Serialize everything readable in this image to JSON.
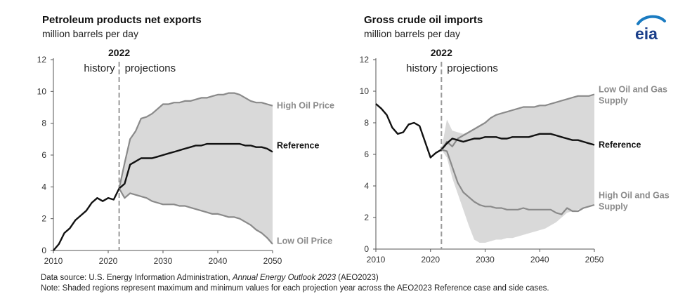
{
  "logo_text": "eia",
  "footer": {
    "source_prefix": "Data source: U.S. Energy Information Administration, ",
    "source_italic": "Annual Energy Outlook 2023",
    "source_suffix": " (AEO2023)",
    "note": "Note: Shaded regions represent maximum and minimum values for each projection year across the AEO2023 Reference case and side cases."
  },
  "colors": {
    "reference": "#111111",
    "side": "#8a8a8a",
    "band": "#d9d9d9",
    "divider": "#999999"
  },
  "chart_data": [
    {
      "type": "area",
      "title": "Petroleum products net exports",
      "subtitle": "million barrels per day",
      "divider_year_label": "2022",
      "history_label": "history",
      "projection_label": "projections",
      "xlim": [
        2010,
        2050
      ],
      "ylim": [
        0,
        12
      ],
      "x_ticks": [
        "2010",
        "2020",
        "2030",
        "2040",
        "2050"
      ],
      "y_ticks": [
        "0",
        "2",
        "4",
        "6",
        "8",
        "10",
        "12"
      ],
      "divider_x": 2022,
      "grid": false,
      "history": {
        "x": [
          2010,
          2011,
          2012,
          2013,
          2014,
          2015,
          2016,
          2017,
          2018,
          2019,
          2020,
          2021,
          2022
        ],
        "values": [
          0.0,
          0.4,
          1.1,
          1.4,
          1.9,
          2.2,
          2.5,
          3.0,
          3.3,
          3.1,
          3.3,
          3.2,
          3.9
        ]
      },
      "series": [
        {
          "name": "High Oil Price",
          "x": [
            2022,
            2023,
            2024,
            2025,
            2026,
            2027,
            2028,
            2029,
            2030,
            2031,
            2032,
            2033,
            2034,
            2035,
            2036,
            2037,
            2038,
            2039,
            2040,
            2041,
            2042,
            2043,
            2044,
            2045,
            2046,
            2047,
            2048,
            2049,
            2050
          ],
          "values": [
            3.9,
            5.5,
            7.0,
            7.5,
            8.3,
            8.4,
            8.6,
            8.9,
            9.2,
            9.2,
            9.3,
            9.3,
            9.4,
            9.4,
            9.5,
            9.6,
            9.6,
            9.7,
            9.8,
            9.8,
            9.9,
            9.9,
            9.8,
            9.6,
            9.4,
            9.3,
            9.3,
            9.2,
            9.1
          ]
        },
        {
          "name": "Reference",
          "x": [
            2022,
            2023,
            2024,
            2025,
            2026,
            2027,
            2028,
            2029,
            2030,
            2031,
            2032,
            2033,
            2034,
            2035,
            2036,
            2037,
            2038,
            2039,
            2040,
            2041,
            2042,
            2043,
            2044,
            2045,
            2046,
            2047,
            2048,
            2049,
            2050
          ],
          "values": [
            3.9,
            4.2,
            5.4,
            5.6,
            5.8,
            5.8,
            5.8,
            5.9,
            6.0,
            6.1,
            6.2,
            6.3,
            6.4,
            6.5,
            6.6,
            6.6,
            6.7,
            6.7,
            6.7,
            6.7,
            6.7,
            6.7,
            6.7,
            6.6,
            6.6,
            6.5,
            6.5,
            6.4,
            6.2
          ]
        },
        {
          "name": "Low Oil Price",
          "x": [
            2022,
            2023,
            2024,
            2025,
            2026,
            2027,
            2028,
            2029,
            2030,
            2031,
            2032,
            2033,
            2034,
            2035,
            2036,
            2037,
            2038,
            2039,
            2040,
            2041,
            2042,
            2043,
            2044,
            2045,
            2046,
            2047,
            2048,
            2049,
            2050
          ],
          "values": [
            3.9,
            3.3,
            3.6,
            3.5,
            3.4,
            3.3,
            3.1,
            3.0,
            2.9,
            2.9,
            2.9,
            2.8,
            2.8,
            2.7,
            2.6,
            2.5,
            2.4,
            2.3,
            2.3,
            2.2,
            2.1,
            2.1,
            2.0,
            1.8,
            1.6,
            1.3,
            1.1,
            0.8,
            0.4
          ]
        }
      ],
      "band": {
        "x": [
          2022,
          2023,
          2024,
          2025,
          2026,
          2027,
          2028,
          2029,
          2030,
          2031,
          2032,
          2033,
          2034,
          2035,
          2036,
          2037,
          2038,
          2039,
          2040,
          2041,
          2042,
          2043,
          2044,
          2045,
          2046,
          2047,
          2048,
          2049,
          2050
        ],
        "upper": [
          3.9,
          5.5,
          7.0,
          7.5,
          8.3,
          8.4,
          8.6,
          8.9,
          9.2,
          9.2,
          9.3,
          9.3,
          9.4,
          9.4,
          9.5,
          9.6,
          9.6,
          9.7,
          9.8,
          9.8,
          9.9,
          9.9,
          9.8,
          9.6,
          9.4,
          9.3,
          9.3,
          9.2,
          9.1
        ],
        "lower": [
          3.9,
          3.3,
          3.6,
          3.5,
          3.4,
          3.3,
          3.1,
          3.0,
          2.9,
          2.9,
          2.9,
          2.8,
          2.8,
          2.7,
          2.6,
          2.5,
          2.4,
          2.3,
          2.3,
          2.2,
          2.1,
          2.1,
          2.0,
          1.8,
          1.6,
          1.3,
          1.1,
          0.8,
          0.4
        ]
      },
      "labels": [
        {
          "text": "High Oil Price",
          "lines": [
            "High Oil Price"
          ],
          "style": "side",
          "y": 9.1
        },
        {
          "text": "Reference",
          "lines": [
            "Reference"
          ],
          "style": "reference",
          "y": 6.6
        },
        {
          "text": "Low Oil Price",
          "lines": [
            "Low Oil Price"
          ],
          "style": "side",
          "y": 0.6
        }
      ]
    },
    {
      "type": "area",
      "title": "Gross crude oil imports",
      "subtitle": "million barrels per day",
      "divider_year_label": "2022",
      "history_label": "history",
      "projection_label": "projections",
      "xlim": [
        2010,
        2050
      ],
      "ylim": [
        0,
        12
      ],
      "x_ticks": [
        "2010",
        "2020",
        "2030",
        "2040",
        "2050"
      ],
      "y_ticks": [
        "0",
        "2",
        "4",
        "6",
        "8",
        "10",
        "12"
      ],
      "divider_x": 2022,
      "grid": false,
      "history": {
        "x": [
          2010,
          2011,
          2012,
          2013,
          2014,
          2015,
          2016,
          2017,
          2018,
          2019,
          2020,
          2021,
          2022
        ],
        "values": [
          9.2,
          8.9,
          8.5,
          7.7,
          7.3,
          7.4,
          7.9,
          8.0,
          7.8,
          6.8,
          5.8,
          6.1,
          6.3
        ]
      },
      "series": [
        {
          "name": "Low Oil and Gas Supply",
          "x": [
            2022,
            2023,
            2024,
            2025,
            2026,
            2027,
            2028,
            2029,
            2030,
            2031,
            2032,
            2033,
            2034,
            2035,
            2036,
            2037,
            2038,
            2039,
            2040,
            2041,
            2042,
            2043,
            2044,
            2045,
            2046,
            2047,
            2048,
            2049,
            2050
          ],
          "values": [
            6.3,
            6.8,
            6.5,
            7.0,
            7.2,
            7.4,
            7.6,
            7.8,
            8.0,
            8.3,
            8.5,
            8.6,
            8.7,
            8.8,
            8.9,
            9.0,
            9.0,
            9.0,
            9.1,
            9.1,
            9.2,
            9.3,
            9.4,
            9.5,
            9.6,
            9.7,
            9.7,
            9.7,
            9.8
          ]
        },
        {
          "name": "Reference",
          "x": [
            2022,
            2023,
            2024,
            2025,
            2026,
            2027,
            2028,
            2029,
            2030,
            2031,
            2032,
            2033,
            2034,
            2035,
            2036,
            2037,
            2038,
            2039,
            2040,
            2041,
            2042,
            2043,
            2044,
            2045,
            2046,
            2047,
            2048,
            2049,
            2050
          ],
          "values": [
            6.3,
            6.7,
            7.0,
            6.9,
            6.8,
            6.9,
            7.0,
            7.0,
            7.1,
            7.1,
            7.1,
            7.0,
            7.0,
            7.1,
            7.1,
            7.1,
            7.1,
            7.2,
            7.3,
            7.3,
            7.3,
            7.2,
            7.1,
            7.0,
            6.9,
            6.9,
            6.8,
            6.7,
            6.6
          ]
        },
        {
          "name": "High Oil and Gas Supply",
          "x": [
            2022,
            2023,
            2024,
            2025,
            2026,
            2027,
            2028,
            2029,
            2030,
            2031,
            2032,
            2033,
            2034,
            2035,
            2036,
            2037,
            2038,
            2039,
            2040,
            2041,
            2042,
            2043,
            2044,
            2045,
            2046,
            2047,
            2048,
            2049,
            2050
          ],
          "values": [
            6.3,
            6.2,
            5.2,
            4.2,
            3.6,
            3.3,
            3.0,
            2.8,
            2.7,
            2.7,
            2.6,
            2.6,
            2.5,
            2.5,
            2.5,
            2.6,
            2.5,
            2.5,
            2.5,
            2.5,
            2.5,
            2.3,
            2.2,
            2.6,
            2.4,
            2.4,
            2.6,
            2.7,
            2.8
          ]
        }
      ],
      "band": {
        "x": [
          2022,
          2023,
          2024,
          2025,
          2026,
          2027,
          2028,
          2029,
          2030,
          2031,
          2032,
          2033,
          2034,
          2035,
          2036,
          2037,
          2038,
          2039,
          2040,
          2041,
          2042,
          2043,
          2044,
          2045,
          2046,
          2047,
          2048,
          2049,
          2050
        ],
        "upper": [
          6.3,
          8.2,
          7.5,
          7.4,
          7.3,
          7.4,
          7.6,
          7.8,
          8.0,
          8.3,
          8.5,
          8.6,
          8.7,
          8.8,
          8.9,
          9.0,
          9.0,
          9.0,
          9.1,
          9.1,
          9.2,
          9.3,
          9.4,
          9.5,
          9.6,
          9.7,
          9.7,
          9.7,
          9.8
        ],
        "lower": [
          6.3,
          5.8,
          4.5,
          3.5,
          2.5,
          1.5,
          0.6,
          0.4,
          0.4,
          0.5,
          0.6,
          0.6,
          0.7,
          0.7,
          0.8,
          0.9,
          1.0,
          1.1,
          1.2,
          1.3,
          1.5,
          1.7,
          2.0,
          2.3,
          2.4,
          2.5,
          2.6,
          2.7,
          2.8
        ]
      },
      "labels": [
        {
          "text": "Low Oil and Gas Supply",
          "lines": [
            "Low Oil and Gas",
            "Supply"
          ],
          "style": "side",
          "y": 9.8
        },
        {
          "text": "Reference",
          "lines": [
            "Reference"
          ],
          "style": "reference",
          "y": 6.6
        },
        {
          "text": "High Oil and Gas Supply",
          "lines": [
            "High Oil and Gas",
            "Supply"
          ],
          "style": "side",
          "y": 3.1
        }
      ]
    }
  ]
}
